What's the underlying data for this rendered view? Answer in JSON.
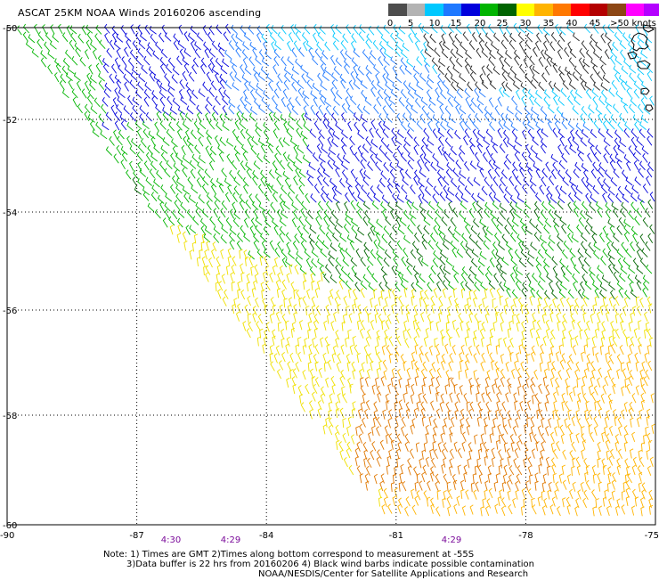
{
  "title": "ASCAT 25KM NOAA Winds 20160206 ascending",
  "color_scale": {
    "colors": [
      "#4d4d4d",
      "#b3b3b3",
      "#00c8ff",
      "#1e78ff",
      "#0000dc",
      "#00b400",
      "#006400",
      "#ffff00",
      "#ffb400",
      "#ff7800",
      "#ff0000",
      "#b40000",
      "#8c4614",
      "#ff00ff",
      "#b400ff",
      "#50009c"
    ],
    "labels": [
      "0",
      "5",
      "10",
      "15",
      "20",
      "25",
      "30",
      "35",
      "40",
      "45",
      ">50 knots"
    ]
  },
  "axes": {
    "lat_labels": [
      "-50",
      "-52",
      "-54",
      "-56",
      "-58",
      "-60"
    ],
    "lon_labels": [
      "-90",
      "-87",
      "-84",
      "-81",
      "-78",
      "-75"
    ]
  },
  "time_labels": [
    "4:30",
    "4:29",
    "4:29"
  ],
  "notes": [
    "Note: 1) Times are GMT 2)Times along bottom correspond to measurement at -55S",
    "3)Data buffer is 22 hrs from 20160206 4) Black wind barbs indicate possible contamination",
    "NOAA/NESDIS/Center for Satellite Applications and Research"
  ]
}
